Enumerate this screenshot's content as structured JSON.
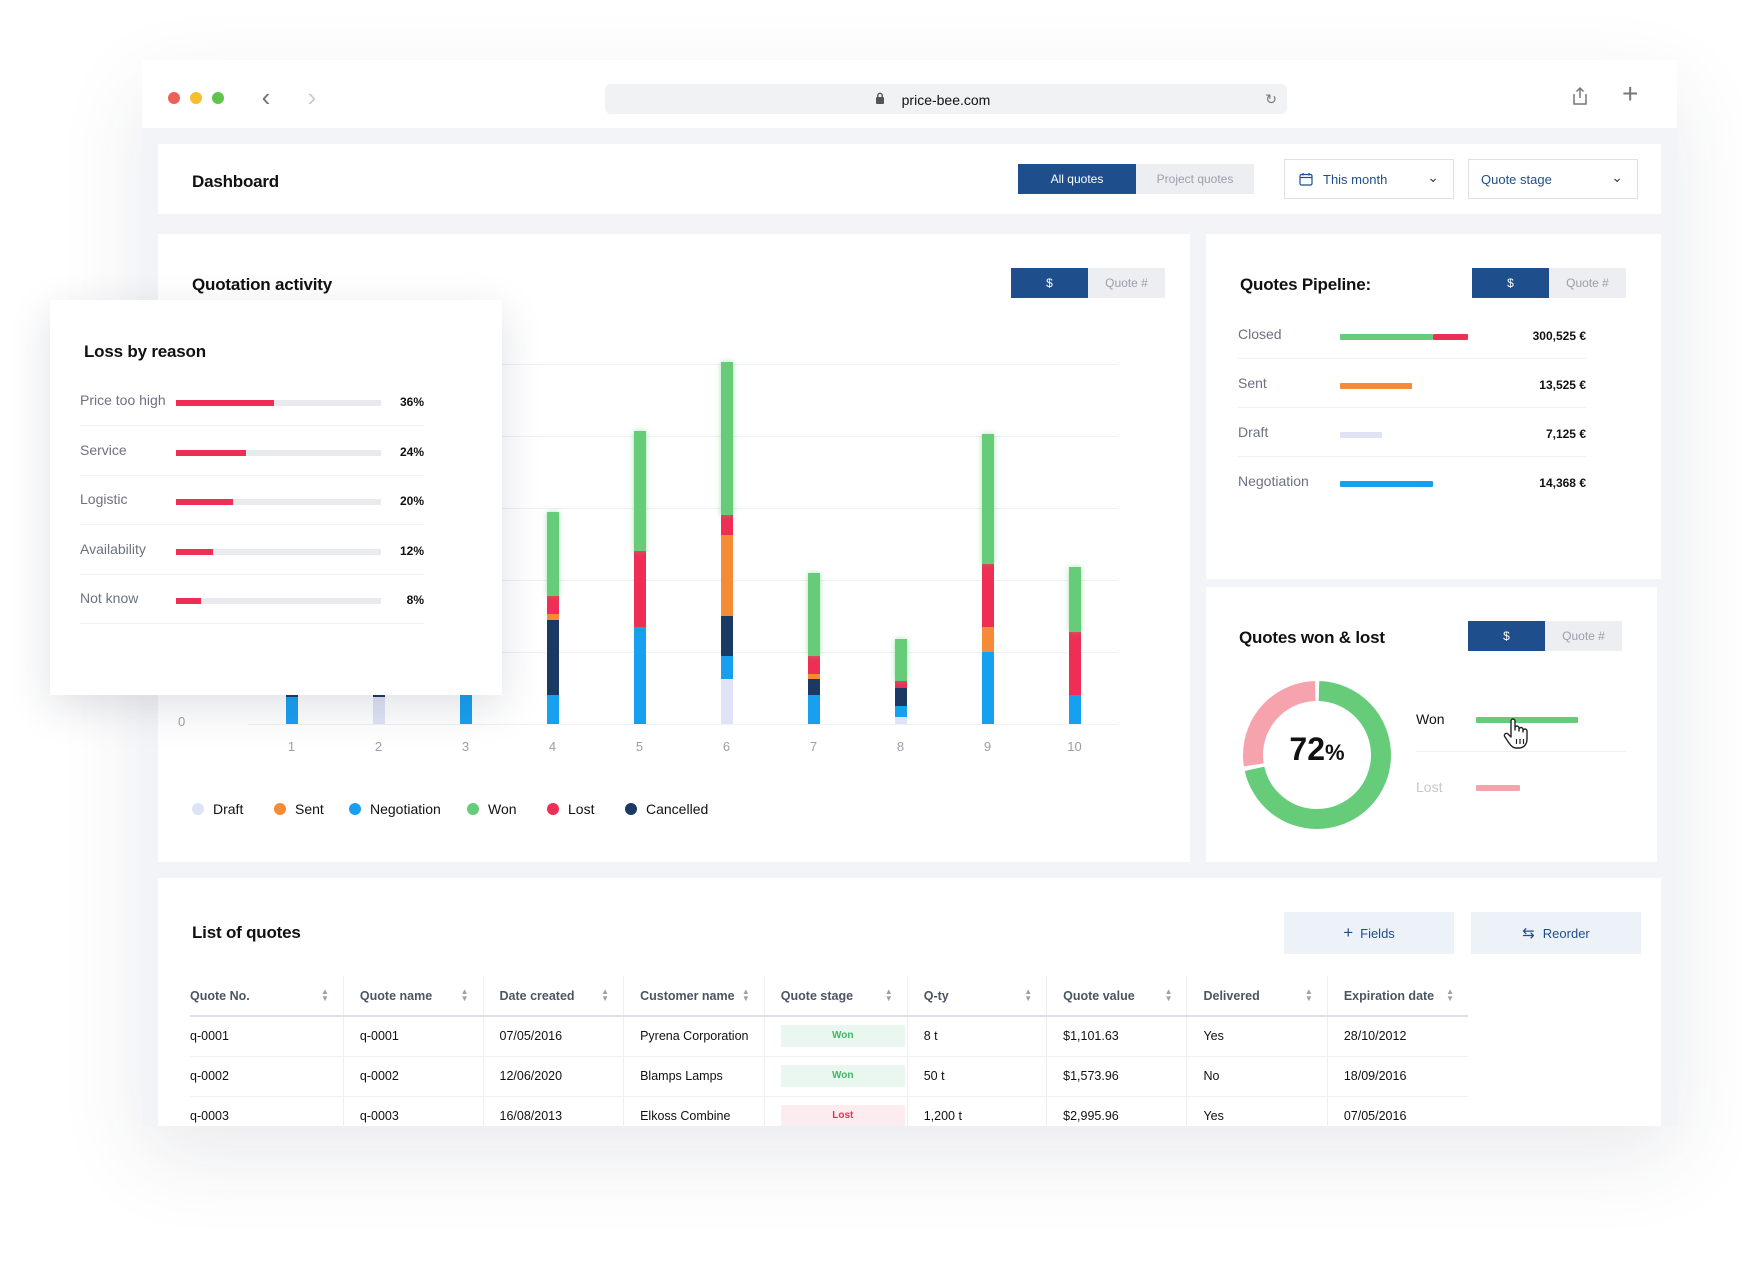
{
  "browser": {
    "url": "price-bee.com"
  },
  "header": {
    "title": "Dashboard",
    "seg_all": "All quotes",
    "seg_project": "Project quotes",
    "date_filter": "This month",
    "stage_filter": "Quote stage"
  },
  "activity": {
    "title": "Quotation activity",
    "seg_currency": "$",
    "seg_count": "Quote #",
    "y_zero": "0"
  },
  "chart_data": {
    "type": "bar",
    "stacked": true,
    "categories": [
      "1",
      "2",
      "3",
      "4",
      "5",
      "6",
      "7",
      "8",
      "9",
      "10"
    ],
    "series": [
      {
        "name": "Draft",
        "color": "#dfe3f6",
        "values": [
          0,
          1.5,
          0,
          0,
          0,
          2.5,
          0,
          0.4,
          0,
          0
        ]
      },
      {
        "name": "Negotiation",
        "color": "#18a0f0",
        "values": [
          1.5,
          0,
          2.0,
          1.6,
          5.4,
          1.3,
          1.6,
          0.6,
          4.0,
          1.6
        ]
      },
      {
        "name": "Cancelled",
        "color": "#1b3a63",
        "values": [
          0.4,
          0.3,
          0,
          4.2,
          0,
          2.2,
          0.9,
          1.0,
          0,
          0
        ]
      },
      {
        "name": "Sent",
        "color": "#f68b35",
        "values": [
          0,
          0,
          0,
          0.3,
          0,
          4.5,
          0.3,
          0,
          1.4,
          0
        ]
      },
      {
        "name": "Lost",
        "color": "#ef2e55",
        "values": [
          0,
          0,
          0,
          1.0,
          4.2,
          1.1,
          1.0,
          0.4,
          3.5,
          3.5
        ]
      },
      {
        "name": "Won",
        "color": "#66cc7a",
        "values": [
          0,
          0,
          0,
          4.7,
          6.7,
          8.5,
          4.6,
          2.3,
          7.2,
          3.6
        ]
      }
    ],
    "legend": [
      "Draft",
      "Sent",
      "Negotiation",
      "Won",
      "Lost",
      "Cancelled"
    ],
    "legend_colors": [
      "#dfe3f6",
      "#f68b35",
      "#18a0f0",
      "#66cc7a",
      "#ef2e55",
      "#1b3a63"
    ],
    "ylim": [
      0,
      20
    ],
    "grid": true,
    "legend_position": "bottom"
  },
  "loss": {
    "title": "Loss by reason",
    "items": [
      {
        "label": "Price too high",
        "pct": "36%",
        "value": 0.48
      },
      {
        "label": "Service",
        "pct": "24%",
        "value": 0.34
      },
      {
        "label": "Logistic",
        "pct": "20%",
        "value": 0.28
      },
      {
        "label": "Availability",
        "pct": "12%",
        "value": 0.18
      },
      {
        "label": "Not know",
        "pct": "8%",
        "value": 0.12
      }
    ]
  },
  "pipeline": {
    "title": "Quotes Pipeline:",
    "seg_currency": "$",
    "seg_count": "Quote #",
    "rows": [
      {
        "label": "Closed",
        "value": "300,525 €",
        "won_fraction": 0.73,
        "lost_fraction": 0.27,
        "fill": 1.0
      },
      {
        "label": "Sent",
        "value": "13,525 €",
        "fill": 0.56,
        "color": "#f68b35"
      },
      {
        "label": "Draft",
        "value": "7,125 €",
        "fill": 0.33,
        "color": "#dfe3f6"
      },
      {
        "label": "Negotiation",
        "value": "14,368 €",
        "fill": 0.73,
        "color": "#18a0f0"
      }
    ]
  },
  "wonlost": {
    "title": "Quotes won & lost",
    "seg_currency": "$",
    "seg_count": "Quote #",
    "percent": "72",
    "percent_sign": "%",
    "won_label": "Won",
    "lost_label": "Lost",
    "won_fraction": 0.72,
    "colors": {
      "won": "#66cc7a",
      "lost": "#f7a3ae"
    }
  },
  "quotes": {
    "title": "List of quotes",
    "fields_label": "Fields",
    "reorder_label": "Reorder",
    "columns": [
      "Quote No.",
      "Quote name",
      "Date created",
      "Customer name",
      "Quote stage",
      "Q-ty",
      "Quote value",
      "Delivered",
      "Expiration date"
    ],
    "rows": [
      {
        "no": "q-0001",
        "name": "q-0001",
        "date": "07/05/2016",
        "customer": "Pyrena Corporation",
        "stage": "Won",
        "qty": "8 t",
        "value": "$1,101.63",
        "delivered": "Yes",
        "expiration": "28/10/2012"
      },
      {
        "no": "q-0002",
        "name": "q-0002",
        "date": "12/06/2020",
        "customer": "Blamps Lamps",
        "stage": "Won",
        "qty": "50 t",
        "value": "$1,573.96",
        "delivered": "No",
        "expiration": "18/09/2016"
      },
      {
        "no": "q-0003",
        "name": "q-0003",
        "date": "16/08/2013",
        "customer": "Elkoss Combine",
        "stage": "Lost",
        "qty": "1,200 t",
        "value": "$2,995.96",
        "delivered": "Yes",
        "expiration": "07/05/2016"
      }
    ]
  }
}
